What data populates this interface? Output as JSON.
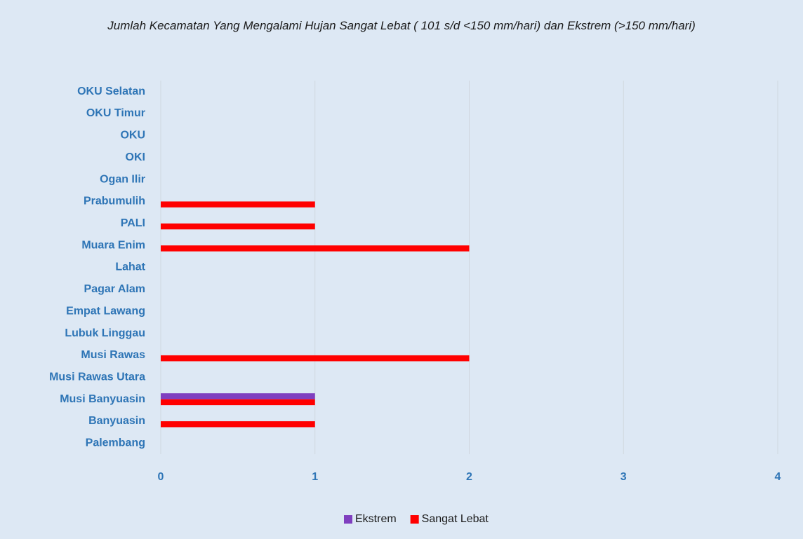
{
  "chart_data": {
    "type": "barh",
    "title": "Jumlah Kecamatan Yang Mengalami Hujan Sangat Lebat ( 101 s/d <150 mm/hari) dan Ekstrem (>150 mm/hari)",
    "categories": [
      "OKU Selatan",
      "OKU Timur",
      "OKU",
      "OKI",
      "Ogan Ilir",
      "Prabumulih",
      "PALI",
      "Muara Enim",
      "Lahat",
      "Pagar Alam",
      "Empat Lawang",
      "Lubuk Linggau",
      "Musi Rawas",
      "Musi Rawas Utara",
      "Musi Banyuasin",
      "Banyuasin",
      "Palembang"
    ],
    "series": [
      {
        "name": "Ekstrem",
        "color": "#7f3fbf",
        "values": [
          0,
          0,
          0,
          0,
          0,
          0,
          0,
          0,
          0,
          0,
          0,
          0,
          0,
          0,
          1,
          0,
          0
        ]
      },
      {
        "name": "Sangat Lebat",
        "color": "#ff0000",
        "values": [
          0,
          0,
          0,
          0,
          0,
          1,
          1,
          2,
          0,
          0,
          0,
          0,
          2,
          0,
          1,
          1,
          0
        ]
      }
    ],
    "xlim": [
      0,
      4
    ],
    "xticks": [
      0,
      1,
      2,
      3,
      4
    ],
    "grid": true,
    "legend": "bottom"
  }
}
